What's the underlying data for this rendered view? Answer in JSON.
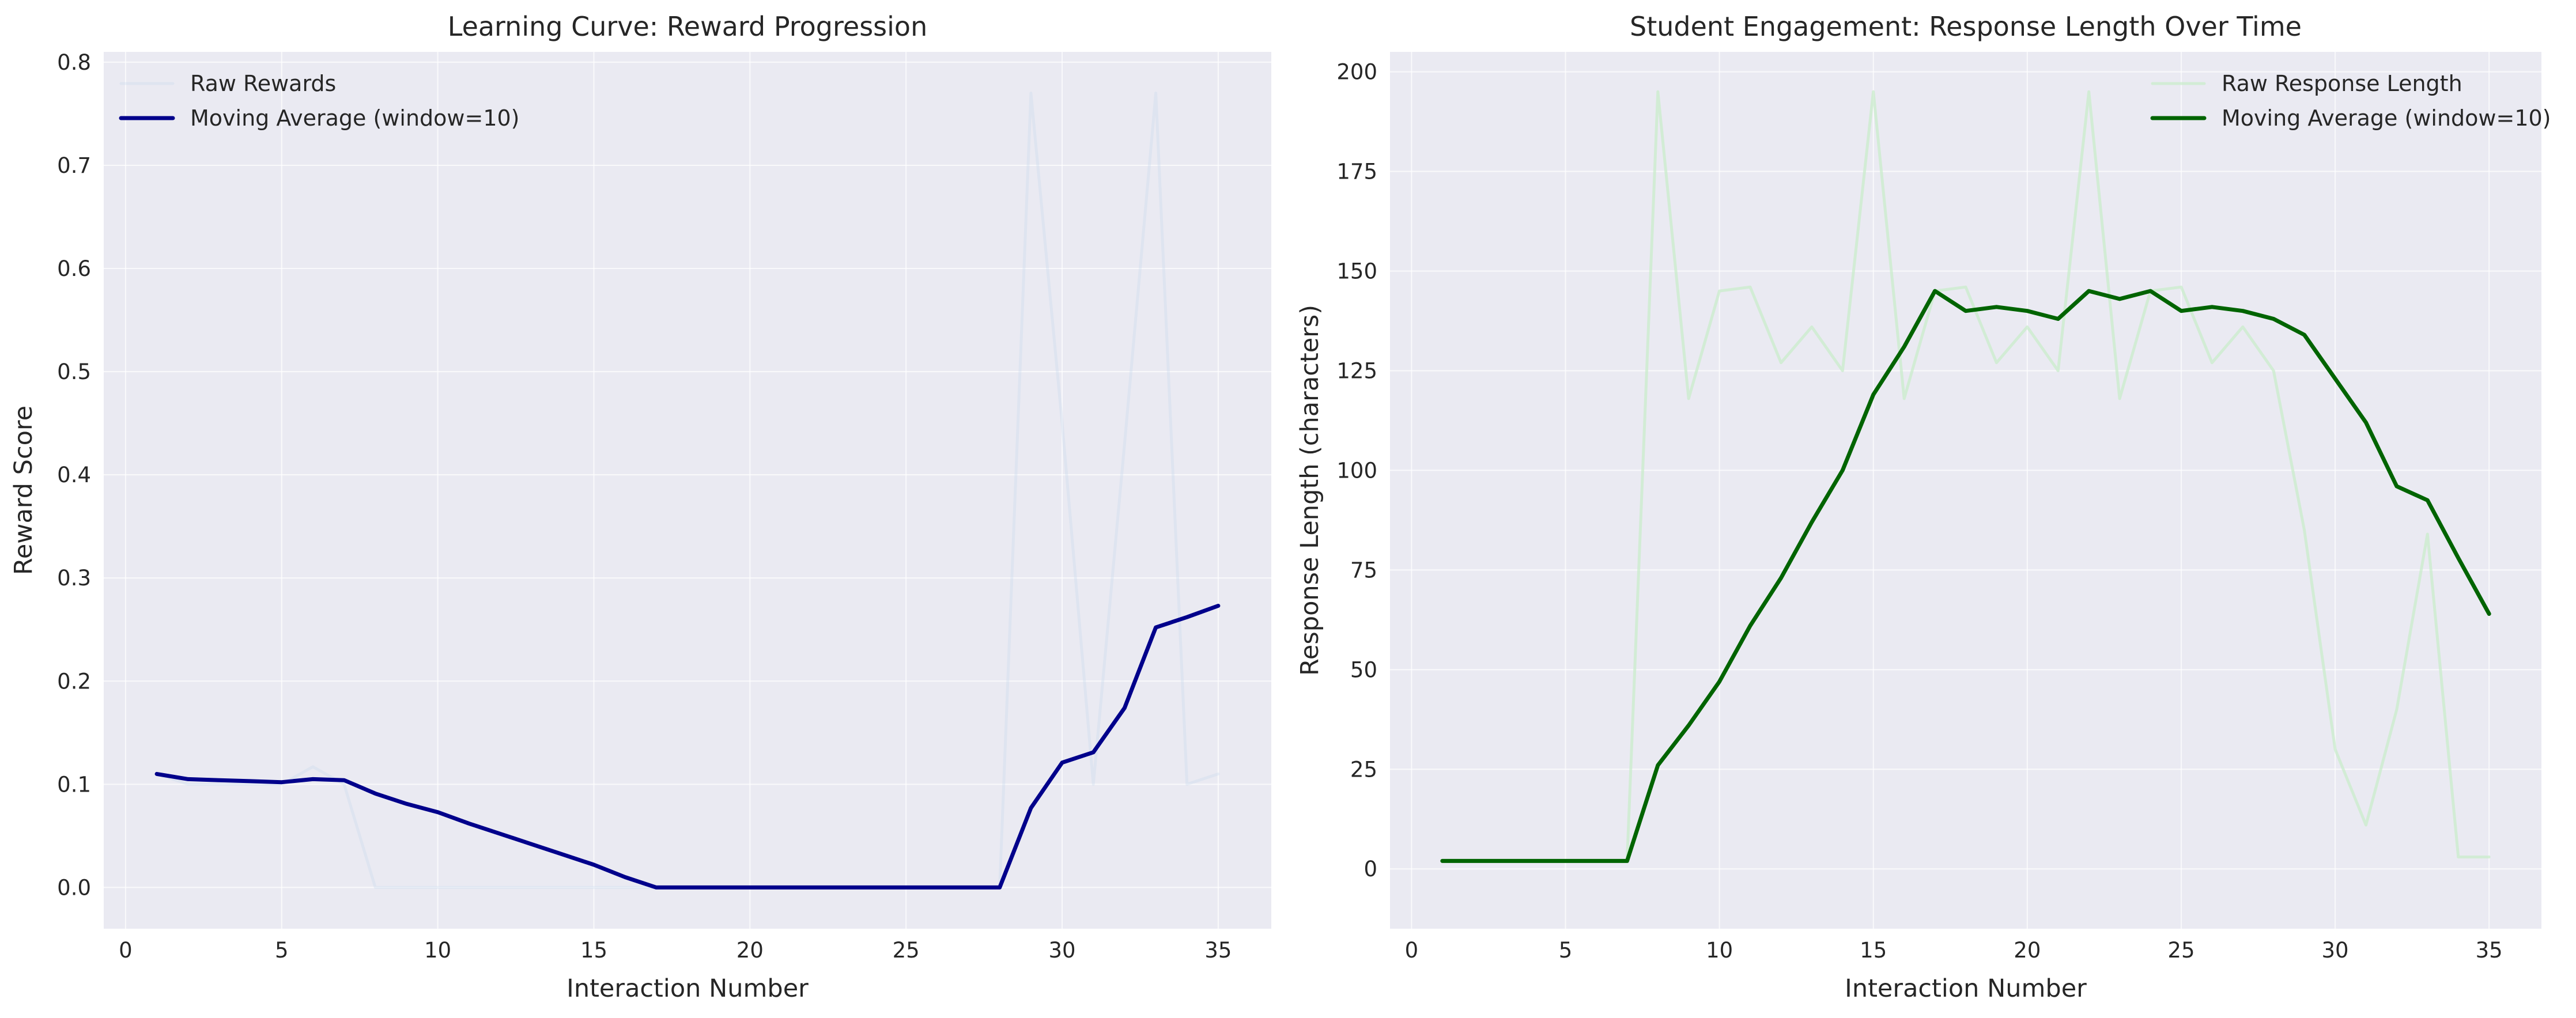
{
  "chart_data": [
    {
      "type": "line",
      "title": "Learning Curve: Reward Progression",
      "xlabel": "Interaction Number",
      "ylabel": "Reward Score",
      "xlim": [
        -0.7,
        36.7
      ],
      "ylim": [
        -0.04,
        0.81
      ],
      "xticks": [
        0,
        5,
        10,
        15,
        20,
        25,
        30,
        35
      ],
      "yticks": [
        0.0,
        0.1,
        0.2,
        0.3,
        0.4,
        0.5,
        0.6,
        0.7,
        0.8
      ],
      "ytick_decimals": 1,
      "grid": true,
      "legend_position": "upper-left",
      "x": [
        1,
        2,
        3,
        4,
        5,
        6,
        7,
        8,
        9,
        10,
        11,
        12,
        13,
        14,
        15,
        16,
        17,
        18,
        19,
        20,
        21,
        22,
        23,
        24,
        25,
        26,
        27,
        28,
        29,
        30,
        31,
        32,
        33,
        34,
        35
      ],
      "series": [
        {
          "name": "Raw Rewards",
          "color": "#c9dbed",
          "opacity": 0.35,
          "width": 5,
          "values": [
            0.11,
            0.1,
            0.1,
            0.1,
            0.1,
            0.117,
            0.1,
            0.0,
            0.0,
            0.0,
            0.0,
            0.0,
            0.0,
            0.0,
            0.0,
            0.0,
            0.0,
            0.0,
            0.0,
            0.0,
            0.0,
            0.0,
            0.0,
            0.0,
            0.0,
            0.0,
            0.0,
            0.0,
            0.77,
            0.45,
            0.1,
            0.43,
            0.77,
            0.1,
            0.11
          ]
        },
        {
          "name": "Moving Average (window=10)",
          "color": "#00008b",
          "opacity": 1,
          "width": 7,
          "values": [
            0.11,
            0.105,
            0.104,
            0.103,
            0.102,
            0.105,
            0.104,
            0.091,
            0.081,
            0.073,
            0.062,
            0.052,
            0.042,
            0.032,
            0.022,
            0.01,
            0.0,
            0.0,
            0.0,
            0.0,
            0.0,
            0.0,
            0.0,
            0.0,
            0.0,
            0.0,
            0.0,
            0.0,
            0.077,
            0.121,
            0.131,
            0.174,
            0.252,
            0.262,
            0.273
          ]
        }
      ]
    },
    {
      "type": "line",
      "title": "Student Engagement: Response Length Over Time",
      "xlabel": "Interaction Number",
      "ylabel": "Response Length (characters)",
      "xlim": [
        -0.7,
        36.7
      ],
      "ylim": [
        -15,
        205
      ],
      "xticks": [
        0,
        5,
        10,
        15,
        20,
        25,
        30,
        35
      ],
      "yticks": [
        0,
        25,
        50,
        75,
        100,
        125,
        150,
        175,
        200
      ],
      "ytick_decimals": 0,
      "grid": true,
      "legend_position": "upper-right",
      "x": [
        1,
        2,
        3,
        4,
        5,
        6,
        7,
        8,
        9,
        10,
        11,
        12,
        13,
        14,
        15,
        16,
        17,
        18,
        19,
        20,
        21,
        22,
        23,
        24,
        25,
        26,
        27,
        28,
        29,
        30,
        31,
        32,
        33,
        34,
        35
      ],
      "series": [
        {
          "name": "Raw Response Length",
          "color": "#c7ecc9",
          "opacity": 0.7,
          "width": 5,
          "values": [
            2,
            2,
            2,
            2,
            2,
            2,
            2,
            195,
            118,
            145,
            146,
            127,
            136,
            125,
            195,
            118,
            145,
            146,
            127,
            136,
            125,
            195,
            118,
            145,
            146,
            127,
            136,
            125,
            85,
            30,
            11,
            40,
            84,
            3,
            3
          ]
        },
        {
          "name": "Moving Average (window=10)",
          "color": "#006400",
          "opacity": 1,
          "width": 7,
          "values": [
            2,
            2,
            2,
            2,
            2,
            2,
            2,
            26,
            36,
            47,
            61,
            73,
            87,
            100,
            119,
            131,
            145,
            140,
            141,
            140,
            138,
            145,
            143,
            145,
            140,
            141,
            140,
            138,
            134,
            123,
            112,
            96,
            92.5,
            78,
            64
          ]
        }
      ]
    }
  ]
}
